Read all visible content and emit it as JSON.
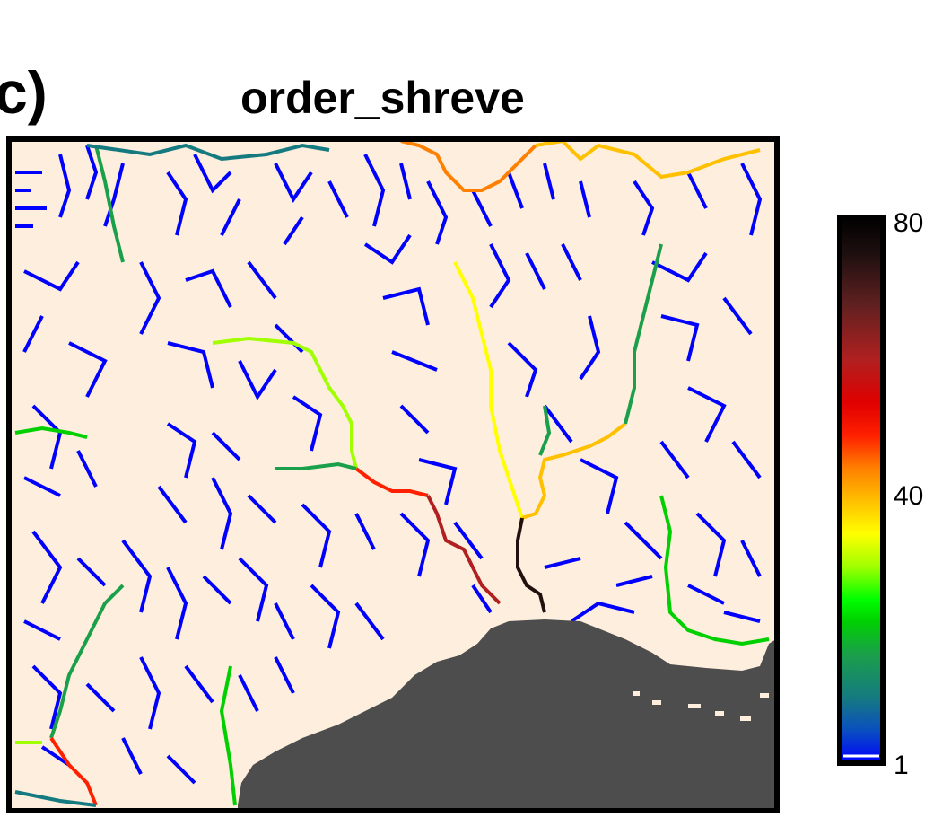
{
  "panel_label": "c)",
  "title": "order_shreve",
  "colorbar": {
    "ticks": [
      "80",
      "40",
      "1"
    ],
    "stops": [
      "#0000ff",
      "#0a4fc0",
      "#157a80",
      "#1aa04a",
      "#00d000",
      "#00ff00",
      "#a0ff00",
      "#ffff00",
      "#ffc000",
      "#ff8000",
      "#ff2000",
      "#e00000",
      "#b02020",
      "#602020",
      "#201010",
      "#000000"
    ]
  },
  "colors": {
    "background": "#fdeedd",
    "sea": "#4d4d4d",
    "minor_stream": "#0000ff",
    "frame": "#000000"
  }
}
